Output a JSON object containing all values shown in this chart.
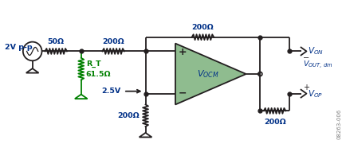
{
  "bg_color": "#ffffff",
  "line_color": "#231f20",
  "green_color": "#008000",
  "teal_fill": "#8fbc8f",
  "blue_text": "#003087",
  "fig_label": "08263-006",
  "source_label": "2V p-p",
  "rt_label": "R_T",
  "rt_val": "61.5Ω",
  "rs_val": "50Ω",
  "r200_val": "200Ω",
  "vocm_label": "2.5V",
  "von_label": "V_{ON}",
  "vop_label": "V_{OP}",
  "vout_label": "V_{OUT, dm}"
}
